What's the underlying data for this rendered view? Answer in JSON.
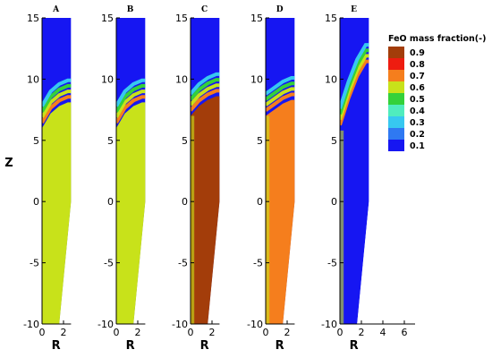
{
  "chart_data": [
    {
      "panel": "A",
      "type": "heatmap",
      "title": "A",
      "xlabel": "R",
      "ylabel": "Z",
      "xlim": [
        0,
        2.7
      ],
      "ylim": [
        -10,
        15
      ],
      "x_ticks": [
        "0",
        "2"
      ],
      "y_ticks": [
        "-10",
        "-5",
        "0",
        "5",
        "10",
        "15"
      ],
      "contour_front": [
        {
          "r": 0,
          "z": 6.0
        },
        {
          "r": 0.8,
          "z": 7.2
        },
        {
          "r": 1.6,
          "z": 7.8
        },
        {
          "r": 2.4,
          "z": 8.1
        }
      ],
      "fill_below_front": 0.6
    },
    {
      "panel": "B",
      "type": "heatmap",
      "title": "B",
      "xlabel": "R",
      "ylabel": "",
      "xlim": [
        0,
        2.7
      ],
      "ylim": [
        -10,
        15
      ],
      "x_ticks": [
        "0",
        "2"
      ],
      "y_ticks": [
        "-10",
        "-5",
        "0",
        "5",
        "10",
        "15"
      ],
      "contour_front": [
        {
          "r": 0,
          "z": 6.0
        },
        {
          "r": 0.8,
          "z": 7.2
        },
        {
          "r": 1.6,
          "z": 7.8
        },
        {
          "r": 2.4,
          "z": 8.1
        }
      ],
      "fill_below_front": 0.6
    },
    {
      "panel": "C",
      "type": "heatmap",
      "title": "C",
      "xlabel": "R",
      "ylabel": "",
      "xlim": [
        0,
        2.7
      ],
      "ylim": [
        -10,
        15
      ],
      "x_ticks": [
        "0",
        "2"
      ],
      "y_ticks": [
        "-10",
        "-5",
        "0",
        "5",
        "10",
        "15"
      ],
      "contour_front": [
        {
          "r": 0,
          "z": 7.0
        },
        {
          "r": 0.8,
          "z": 7.8
        },
        {
          "r": 1.6,
          "z": 8.3
        },
        {
          "r": 2.4,
          "z": 8.6
        }
      ],
      "fill_below_front": 0.9
    },
    {
      "panel": "D",
      "type": "heatmap",
      "title": "D",
      "xlabel": "R",
      "ylabel": "",
      "xlim": [
        0,
        2.7
      ],
      "ylim": [
        -10,
        15
      ],
      "x_ticks": [
        "0",
        "2"
      ],
      "y_ticks": [
        "-10",
        "-5",
        "0",
        "5",
        "10",
        "15"
      ],
      "contour_front": [
        {
          "r": 0,
          "z": 7.0
        },
        {
          "r": 0.8,
          "z": 7.5
        },
        {
          "r": 1.6,
          "z": 8.0
        },
        {
          "r": 2.4,
          "z": 8.3
        }
      ],
      "fill_below_front": 0.7
    },
    {
      "panel": "E",
      "type": "heatmap",
      "title": "E",
      "xlabel": "R",
      "ylabel": "",
      "xlim": [
        0,
        7
      ],
      "ylim": [
        -10,
        15
      ],
      "x_ticks": [
        "0",
        "2",
        "4",
        "6"
      ],
      "y_ticks": [
        "-10",
        "-5",
        "0",
        "5",
        "10",
        "15"
      ],
      "contour_front": [
        {
          "r": 0,
          "z": 5.8
        },
        {
          "r": 0.8,
          "z": 8.0
        },
        {
          "r": 1.6,
          "z": 9.8
        },
        {
          "r": 2.4,
          "z": 11.0
        }
      ],
      "fill_below_front": 0.1
    }
  ],
  "legend": {
    "title": "FeO mass fraction(-)",
    "placement": "top-right",
    "levels": [
      {
        "label": "0.9",
        "value": 0.9,
        "color": "#a33d0a"
      },
      {
        "label": "0.8",
        "value": 0.8,
        "color": "#ee1c10"
      },
      {
        "label": "0.7",
        "value": 0.7,
        "color": "#f57e1d"
      },
      {
        "label": "0.6",
        "value": 0.6,
        "color": "#c8e21a"
      },
      {
        "label": "0.5",
        "value": 0.5,
        "color": "#34d13a"
      },
      {
        "label": "0.4",
        "value": 0.4,
        "color": "#50ecbe"
      },
      {
        "label": "0.3",
        "value": 0.3,
        "color": "#37c8f0"
      },
      {
        "label": "0.2",
        "value": 0.2,
        "color": "#2f79f2"
      },
      {
        "label": "0.1",
        "value": 0.1,
        "color": "#1616f2"
      }
    ]
  }
}
